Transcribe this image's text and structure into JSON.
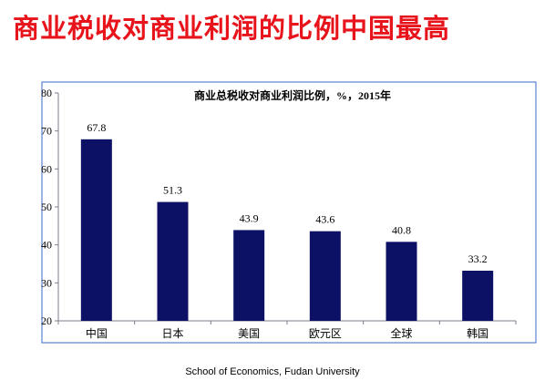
{
  "slide": {
    "title": "商业税收对商业利润的比例中国最高",
    "footer": "School of Economics, Fudan University"
  },
  "colors": {
    "title": "#e8141c",
    "bar": "#0d1166",
    "axis": "#7a7f8c",
    "border": "#3a6ac8"
  },
  "chart_data": {
    "type": "bar",
    "title": "商业总税收对商业利润比例，%，2015年",
    "categories": [
      "中国",
      "日本",
      "美国",
      "欧元区",
      "全球",
      "韩国"
    ],
    "values": [
      67.8,
      51.3,
      43.9,
      43.6,
      40.8,
      33.2
    ],
    "value_labels": [
      "67.8",
      "51.3",
      "43.9",
      "43.6",
      "40.8",
      "33.2"
    ],
    "ylim": [
      20,
      80
    ],
    "yticks": [
      20,
      30,
      40,
      50,
      60,
      70,
      80
    ],
    "grid": false,
    "legend": "none",
    "xlabel": "",
    "ylabel": ""
  }
}
